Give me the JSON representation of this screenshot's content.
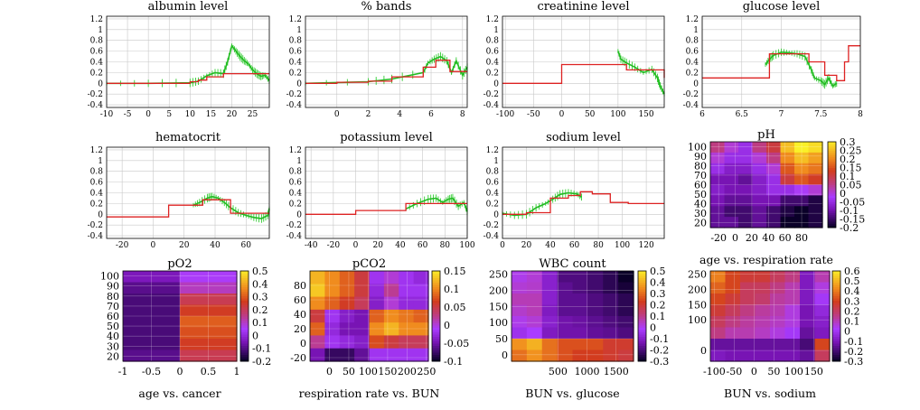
{
  "chart_data": [
    {
      "type": "line",
      "title": "albumin level",
      "xlim": [
        -10,
        29
      ],
      "ylim": [
        -0.45,
        1.25
      ],
      "xticks": [
        -10,
        -5,
        0,
        5,
        10,
        15,
        20,
        25
      ],
      "yticks": [
        -0.4,
        -0.2,
        0,
        0.2,
        0.4,
        0.6,
        0.8,
        1,
        1.2
      ],
      "step": [
        [
          -10,
          0
        ],
        [
          8.5,
          0
        ],
        [
          10,
          0.03
        ],
        [
          12,
          0.06
        ],
        [
          14,
          0.12
        ],
        [
          18,
          0.18
        ],
        [
          29,
          0.18
        ]
      ],
      "series": [
        [
          -10,
          0
        ],
        [
          0,
          0
        ],
        [
          10,
          0.01
        ],
        [
          12,
          0.04
        ],
        [
          14,
          0.14
        ],
        [
          16,
          0.2
        ],
        [
          18,
          0.18
        ],
        [
          19,
          0.4
        ],
        [
          20,
          0.7
        ],
        [
          21,
          0.6
        ],
        [
          22,
          0.5
        ],
        [
          23,
          0.42
        ],
        [
          24,
          0.36
        ],
        [
          25,
          0.25
        ],
        [
          26,
          0.18
        ],
        [
          27,
          0.13
        ],
        [
          28,
          0.15
        ],
        [
          29,
          0.05
        ]
      ]
    },
    {
      "type": "line",
      "title": "% bands",
      "xlim": [
        -2,
        8.3
      ],
      "ylim": [
        -0.45,
        1.25
      ],
      "xticks": [
        0,
        2,
        4,
        6,
        8
      ],
      "yticks": [
        -0.4,
        -0.2,
        0,
        0.2,
        0.4,
        0.6,
        0.8,
        1,
        1.2
      ],
      "step": [
        [
          -2,
          0
        ],
        [
          0,
          0.02
        ],
        [
          2,
          0.04
        ],
        [
          3.5,
          0.12
        ],
        [
          5.5,
          0.3
        ],
        [
          6.3,
          0.43
        ],
        [
          7.2,
          0.22
        ],
        [
          8.3,
          0.22
        ]
      ],
      "series": [
        [
          -2,
          0
        ],
        [
          2,
          0.03
        ],
        [
          3.5,
          0.08
        ],
        [
          5.5,
          0.2
        ],
        [
          5.8,
          0.38
        ],
        [
          6.2,
          0.45
        ],
        [
          6.6,
          0.5
        ],
        [
          7,
          0.42
        ],
        [
          7.3,
          0.2
        ],
        [
          7.6,
          0.42
        ],
        [
          8,
          0.15
        ],
        [
          8.3,
          0.3
        ]
      ]
    },
    {
      "type": "line",
      "title": "creatinine level",
      "xlim": [
        -105,
        182
      ],
      "ylim": [
        -0.45,
        1.25
      ],
      "xticks": [
        -100,
        -50,
        0,
        50,
        100,
        150
      ],
      "yticks": [
        -0.4,
        -0.2,
        0,
        0.2,
        0.4,
        0.6,
        0.8,
        1,
        1.2
      ],
      "step": [
        [
          -105,
          0
        ],
        [
          0,
          0
        ],
        [
          0,
          0.35
        ],
        [
          100,
          0.35
        ],
        [
          115,
          0.25
        ],
        [
          160,
          0.25
        ],
        [
          182,
          0.1
        ]
      ],
      "series": [
        [
          100,
          0.6
        ],
        [
          105,
          0.45
        ],
        [
          115,
          0.38
        ],
        [
          130,
          0.3
        ],
        [
          145,
          0.2
        ],
        [
          160,
          0.26
        ],
        [
          170,
          0.1
        ],
        [
          175,
          -0.05
        ],
        [
          182,
          -0.2
        ]
      ]
    },
    {
      "type": "line",
      "title": "glucose level",
      "xlim": [
        6,
        8
      ],
      "ylim": [
        -0.45,
        1.25
      ],
      "xticks": [
        6,
        6.5,
        7,
        7.5,
        8
      ],
      "yticks": [
        -0.4,
        -0.2,
        0,
        0.2,
        0.4,
        0.6,
        0.8,
        1,
        1.2
      ],
      "step": [
        [
          6,
          0.1
        ],
        [
          6.75,
          0.1
        ],
        [
          6.85,
          0.55
        ],
        [
          7.35,
          0.4
        ],
        [
          7.55,
          0.15
        ],
        [
          7.7,
          0.05
        ],
        [
          7.8,
          0.4
        ],
        [
          7.85,
          0.7
        ],
        [
          8,
          0.7
        ]
      ],
      "series": [
        [
          6.8,
          0.35
        ],
        [
          6.85,
          0.45
        ],
        [
          6.9,
          0.52
        ],
        [
          7,
          0.58
        ],
        [
          7.1,
          0.57
        ],
        [
          7.2,
          0.55
        ],
        [
          7.3,
          0.5
        ],
        [
          7.38,
          0.25
        ],
        [
          7.42,
          0.1
        ],
        [
          7.5,
          0.05
        ],
        [
          7.55,
          -0.02
        ],
        [
          7.6,
          0.1
        ],
        [
          7.65,
          -0.05
        ],
        [
          7.7,
          0.0
        ]
      ]
    },
    {
      "type": "line",
      "title": "hematocrit",
      "xlim": [
        -30,
        75
      ],
      "ylim": [
        -0.45,
        1.25
      ],
      "xticks": [
        -20,
        0,
        20,
        40,
        60
      ],
      "yticks": [
        -0.4,
        -0.2,
        0,
        0.2,
        0.4,
        0.6,
        0.8,
        1,
        1.2
      ],
      "step": [
        [
          -30,
          -0.05
        ],
        [
          10,
          -0.05
        ],
        [
          10,
          0.17
        ],
        [
          26,
          0.17
        ],
        [
          32,
          0.27
        ],
        [
          45,
          0.27
        ],
        [
          50,
          0.02
        ],
        [
          75,
          0.02
        ]
      ],
      "series": [
        [
          26,
          0.17
        ],
        [
          30,
          0.22
        ],
        [
          35,
          0.3
        ],
        [
          38,
          0.33
        ],
        [
          42,
          0.3
        ],
        [
          46,
          0.22
        ],
        [
          50,
          0.12
        ],
        [
          55,
          0.03
        ],
        [
          60,
          -0.02
        ],
        [
          65,
          -0.06
        ],
        [
          70,
          -0.08
        ],
        [
          74,
          -0.02
        ],
        [
          75,
          0.1
        ]
      ]
    },
    {
      "type": "line",
      "title": "potassium level",
      "xlim": [
        -45,
        100
      ],
      "ylim": [
        -0.45,
        1.25
      ],
      "xticks": [
        -40,
        -20,
        0,
        20,
        40,
        60,
        80,
        100
      ],
      "yticks": [
        -0.4,
        -0.2,
        0,
        0.2,
        0.4,
        0.6,
        0.8,
        1,
        1.2
      ],
      "step": [
        [
          -45,
          0
        ],
        [
          0,
          0
        ],
        [
          0,
          0.07
        ],
        [
          45,
          0.07
        ],
        [
          45,
          0.2
        ],
        [
          100,
          0.2
        ]
      ],
      "series": [
        [
          45,
          0.1
        ],
        [
          55,
          0.2
        ],
        [
          65,
          0.28
        ],
        [
          72,
          0.3
        ],
        [
          78,
          0.22
        ],
        [
          83,
          0.28
        ],
        [
          87,
          0.3
        ],
        [
          92,
          0.15
        ],
        [
          97,
          0.22
        ],
        [
          100,
          0.05
        ]
      ]
    },
    {
      "type": "line",
      "title": "sodium level",
      "xlim": [
        0,
        135
      ],
      "ylim": [
        -0.45,
        1.25
      ],
      "xticks": [
        0,
        20,
        40,
        60,
        80,
        100,
        120
      ],
      "yticks": [
        -0.4,
        -0.2,
        0,
        0.2,
        0.4,
        0.6,
        0.8,
        1,
        1.2
      ],
      "step": [
        [
          0,
          0
        ],
        [
          20,
          0.03
        ],
        [
          40,
          0.3
        ],
        [
          55,
          0.35
        ],
        [
          65,
          0.42
        ],
        [
          75,
          0.38
        ],
        [
          90,
          0.22
        ],
        [
          105,
          0.2
        ],
        [
          135,
          0.2
        ]
      ],
      "series": [
        [
          0,
          0.02
        ],
        [
          10,
          -0.02
        ],
        [
          20,
          0.0
        ],
        [
          28,
          0.12
        ],
        [
          36,
          0.2
        ],
        [
          42,
          0.28
        ],
        [
          48,
          0.37
        ],
        [
          55,
          0.4
        ],
        [
          62,
          0.38
        ],
        [
          66,
          0.32
        ]
      ]
    },
    {
      "type": "heatmap",
      "title": "pH",
      "xlabel": "age vs. respiration rate",
      "xlim": [
        -30,
        105
      ],
      "ylim": [
        15,
        105
      ],
      "xticks": [
        -20,
        0,
        20,
        40,
        60,
        80
      ],
      "yticks": [
        20,
        30,
        40,
        50,
        60,
        70,
        80,
        90,
        100
      ],
      "colorbar": [
        -0.2,
        0.3
      ],
      "cbticks": [
        -0.2,
        -0.15,
        -0.1,
        -0.05,
        0,
        0.05,
        0.1,
        0.15,
        0.2,
        0.25,
        0.3
      ],
      "cells": [
        [
          0.05,
          0.0,
          -0.05,
          0.05,
          0.1,
          0.25,
          0.3,
          0.28
        ],
        [
          0.0,
          -0.05,
          -0.05,
          0.0,
          0.05,
          0.2,
          0.25,
          0.22
        ],
        [
          -0.05,
          -0.08,
          -0.08,
          -0.05,
          0.0,
          0.15,
          0.2,
          0.18
        ],
        [
          -0.1,
          -0.1,
          -0.12,
          -0.08,
          -0.05,
          0.1,
          0.15,
          0.12
        ],
        [
          -0.08,
          -0.1,
          -0.1,
          -0.08,
          -0.05,
          -0.05,
          -0.02,
          0.0
        ],
        [
          -0.1,
          -0.12,
          -0.12,
          -0.1,
          -0.1,
          -0.15,
          -0.15,
          -0.18
        ],
        [
          -0.12,
          -0.15,
          -0.15,
          -0.12,
          -0.15,
          -0.18,
          -0.2,
          -0.18
        ],
        [
          -0.12,
          -0.12,
          -0.15,
          -0.12,
          -0.15,
          -0.2,
          -0.2,
          -0.18
        ]
      ]
    },
    {
      "type": "heatmap",
      "title": "pO2",
      "xlabel": "age vs. cancer",
      "xlim": [
        -1,
        1
      ],
      "ylim": [
        15,
        105
      ],
      "xticks": [
        -1,
        -0.5,
        0,
        0.5,
        1
      ],
      "yticks": [
        20,
        30,
        40,
        50,
        60,
        70,
        80,
        90,
        100
      ],
      "colorbar": [
        -0.2,
        0.5
      ],
      "cbticks": [
        -0.2,
        -0.1,
        0,
        0.1,
        0.2,
        0.3,
        0.4,
        0.5
      ],
      "cells": [
        [
          -0.05,
          -0.05,
          0.05,
          0.05
        ],
        [
          -0.1,
          -0.1,
          0.1,
          0.1
        ],
        [
          -0.12,
          -0.12,
          0.2,
          0.2
        ],
        [
          -0.12,
          -0.12,
          0.25,
          0.25
        ],
        [
          -0.12,
          -0.12,
          0.3,
          0.3
        ],
        [
          -0.12,
          -0.12,
          0.28,
          0.28
        ],
        [
          -0.12,
          -0.12,
          0.25,
          0.25
        ],
        [
          -0.1,
          -0.1,
          0.2,
          0.2
        ]
      ]
    },
    {
      "type": "heatmap",
      "title": "pCO2",
      "xlabel": "respiration rate vs. BUN",
      "xlim": [
        -50,
        255
      ],
      "ylim": [
        -25,
        100
      ],
      "xticks": [
        0,
        50,
        100,
        150,
        200,
        250
      ],
      "yticks": [
        -20,
        0,
        20,
        40,
        60,
        80
      ],
      "colorbar": [
        -0.1,
        0.15
      ],
      "cbticks": [
        -0.1,
        -0.05,
        0,
        0.05,
        0.1,
        0.15
      ],
      "cells": [
        [
          0.12,
          0.1,
          0.08,
          0.05,
          -0.02,
          0.0,
          -0.02,
          -0.03
        ],
        [
          0.13,
          0.1,
          0.08,
          0.05,
          -0.03,
          0.02,
          -0.02,
          -0.02
        ],
        [
          0.1,
          0.08,
          0.06,
          0.04,
          -0.04,
          0.0,
          -0.03,
          -0.03
        ],
        [
          0.05,
          -0.02,
          -0.04,
          -0.05,
          0.08,
          0.1,
          0.09,
          0.08
        ],
        [
          0.08,
          -0.03,
          -0.05,
          -0.05,
          0.1,
          0.12,
          0.1,
          0.1
        ],
        [
          0.02,
          -0.02,
          -0.03,
          -0.04,
          0.07,
          0.05,
          0.04,
          0.04
        ],
        [
          -0.05,
          -0.08,
          -0.08,
          -0.06,
          -0.02,
          -0.02,
          -0.02,
          -0.02
        ]
      ]
    },
    {
      "type": "heatmap",
      "title": "WBC count",
      "xlabel": "BUN vs. glucose",
      "xlim": [
        -300,
        1800
      ],
      "ylim": [
        -20,
        260
      ],
      "xticks": [
        500,
        1000,
        1500
      ],
      "yticks": [
        0,
        50,
        100,
        150,
        200,
        250
      ],
      "colorbar": [
        -0.3,
        0.5
      ],
      "cbticks": [
        -0.3,
        -0.2,
        -0.1,
        0,
        0.1,
        0.2,
        0.3,
        0.4,
        0.5
      ],
      "cells": [
        [
          0.0,
          0.02,
          -0.1,
          -0.2,
          -0.2,
          -0.22,
          -0.25,
          -0.3
        ],
        [
          0.02,
          0.03,
          -0.1,
          -0.18,
          -0.2,
          -0.22,
          -0.25,
          -0.28
        ],
        [
          0.05,
          0.05,
          -0.1,
          -0.18,
          -0.18,
          -0.2,
          -0.22,
          -0.25
        ],
        [
          0.03,
          0.05,
          -0.12,
          -0.18,
          -0.18,
          -0.2,
          -0.22,
          -0.25
        ],
        [
          0.0,
          0.02,
          -0.1,
          -0.15,
          -0.16,
          -0.18,
          -0.2,
          -0.22
        ],
        [
          -0.05,
          -0.02,
          -0.12,
          -0.15,
          -0.15,
          -0.17,
          -0.18,
          -0.2
        ],
        [
          0.35,
          0.4,
          0.3,
          0.25,
          0.25,
          0.25,
          0.2,
          0.2
        ],
        [
          0.3,
          0.35,
          0.3,
          0.25,
          0.22,
          0.22,
          0.2,
          0.18
        ]
      ]
    },
    {
      "type": "heatmap",
      "title": "",
      "xlabel": "BUN vs. sodium",
      "xlim": [
        -110,
        190
      ],
      "ylim": [
        -35,
        260
      ],
      "xticks": [
        -100,
        -50,
        0,
        50,
        100,
        150
      ],
      "yticks": [
        0,
        100,
        150,
        200,
        250
      ],
      "colorbar": [
        -0.3,
        0.6
      ],
      "cbticks": [
        -0.3,
        -0.2,
        -0.1,
        0,
        0.1,
        0.2,
        0.3,
        0.4,
        0.5,
        0.6
      ],
      "cells": [
        [
          0.4,
          0.3,
          0.25,
          0.25,
          0.2,
          0.15,
          -0.1,
          0.1
        ],
        [
          0.35,
          0.3,
          0.2,
          0.2,
          0.15,
          0.1,
          -0.1,
          0.05
        ],
        [
          0.3,
          0.25,
          0.2,
          0.18,
          0.12,
          0.1,
          -0.1,
          0.0
        ],
        [
          0.25,
          0.2,
          0.15,
          0.12,
          0.1,
          0.05,
          -0.12,
          -0.05
        ],
        [
          0.2,
          0.15,
          0.12,
          0.1,
          0.08,
          0.05,
          -0.12,
          -0.08
        ],
        [
          0.15,
          0.1,
          0.1,
          0.08,
          0.05,
          0.0,
          -0.15,
          -0.1
        ],
        [
          -0.15,
          -0.15,
          -0.15,
          -0.15,
          -0.15,
          -0.15,
          -0.2,
          0.3
        ],
        [
          -0.1,
          -0.12,
          -0.12,
          -0.12,
          -0.12,
          -0.12,
          -0.15,
          0.2
        ]
      ]
    }
  ]
}
